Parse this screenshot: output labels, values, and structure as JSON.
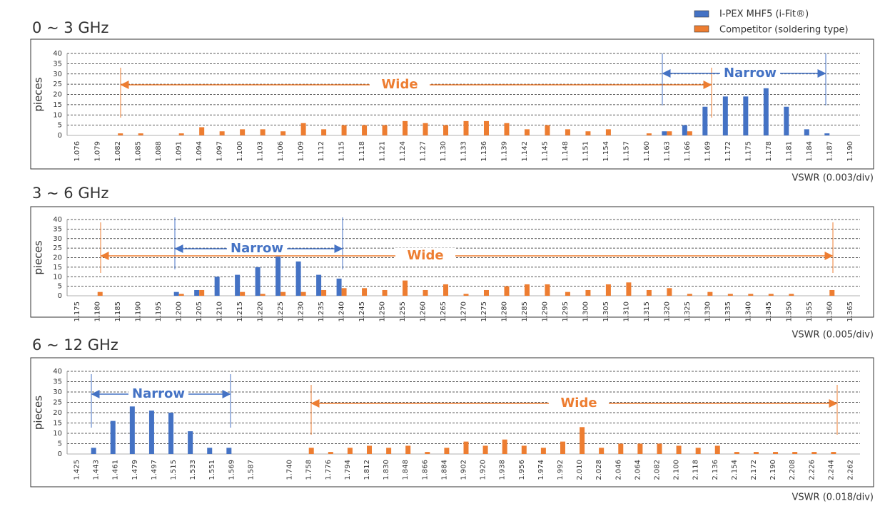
{
  "chart_data": [
    {
      "type": "bar",
      "title": "0 ~ 3 GHz",
      "ylabel": "pieces",
      "xlabel": "VSWR (0.003/div)",
      "categories": [
        "1.076",
        "1.079",
        "1.082",
        "1.085",
        "1.088",
        "1.091",
        "1.094",
        "1.097",
        "1.100",
        "1.103",
        "1.106",
        "1.109",
        "1.112",
        "1.115",
        "1.118",
        "1.121",
        "1.124",
        "1.127",
        "1.130",
        "1.133",
        "1.136",
        "1.139",
        "1.142",
        "1.145",
        "1.148",
        "1.151",
        "1.154",
        "1.157",
        "1.160",
        "1.163",
        "1.166",
        "1.169",
        "1.172",
        "1.175",
        "1.178",
        "1.181",
        "1.184",
        "1.187",
        "1.190"
      ],
      "series": [
        {
          "name": "I-PEX MHF5 (i-Fit®)",
          "color": "#4472c4",
          "values": [
            0,
            0,
            0,
            0,
            0,
            0,
            0,
            0,
            0,
            0,
            0,
            0,
            0,
            0,
            0,
            0,
            0,
            0,
            0,
            0,
            0,
            0,
            0,
            0,
            0,
            0,
            0,
            0,
            0,
            2,
            5,
            14,
            19,
            19,
            23,
            14,
            3,
            1,
            0
          ]
        },
        {
          "name": "Competitor  (soldering type)",
          "color": "#ed7d31",
          "values": [
            0,
            0,
            1,
            1,
            0,
            1,
            4,
            2,
            3,
            3,
            2,
            6,
            3,
            5,
            5,
            5,
            7,
            6,
            5,
            7,
            7,
            6,
            3,
            5,
            3,
            2,
            3,
            0,
            1,
            2,
            2,
            0,
            0,
            0,
            0,
            0,
            0,
            0,
            0
          ]
        }
      ],
      "annotations": [
        "Wide",
        "Narrow"
      ],
      "ylim": [
        0,
        40
      ],
      "yticks": [
        0,
        5,
        10,
        15,
        20,
        25,
        30,
        35,
        40
      ],
      "grid": true
    },
    {
      "type": "bar",
      "title": "3 ~ 6 GHz",
      "ylabel": "pieces",
      "xlabel": "VSWR (0.005/div)",
      "categories": [
        "1.175",
        "1.180",
        "1.185",
        "1.190",
        "1.195",
        "1.200",
        "1.205",
        "1.210",
        "1.215",
        "1.220",
        "1.225",
        "1.230",
        "1.235",
        "1.240",
        "1.245",
        "1.250",
        "1.255",
        "1.260",
        "1.265",
        "1.270",
        "1.275",
        "1.280",
        "1.285",
        "1.290",
        "1.295",
        "1.300",
        "1.305",
        "1.310",
        "1.315",
        "1.320",
        "1.325",
        "1.330",
        "1.335",
        "1.340",
        "1.345",
        "1.350",
        "1.355",
        "1.360",
        "1.365"
      ],
      "series": [
        {
          "color": "#4472c4",
          "values": [
            0,
            0,
            0,
            0,
            0,
            2,
            3,
            10,
            11,
            15,
            21,
            18,
            11,
            9,
            0,
            0,
            0,
            0,
            0,
            0,
            0,
            0,
            0,
            0,
            0,
            0,
            0,
            0,
            0,
            0,
            0,
            0,
            0,
            0,
            0,
            0,
            0,
            0,
            0
          ]
        },
        {
          "color": "#ed7d31",
          "values": [
            0,
            2,
            0,
            0,
            0,
            1,
            3,
            0,
            2,
            1,
            2,
            2,
            3,
            4,
            4,
            3,
            8,
            3,
            6,
            1,
            3,
            5,
            6,
            6,
            2,
            3,
            6,
            7,
            3,
            4,
            1,
            2,
            1,
            1,
            1,
            1,
            0,
            3,
            0
          ]
        }
      ],
      "annotations": [
        "Narrow",
        "Wide"
      ],
      "ylim": [
        0,
        40
      ],
      "yticks": [
        0,
        5,
        10,
        15,
        20,
        25,
        30,
        35,
        40
      ],
      "grid": true
    },
    {
      "type": "bar",
      "title": "6 ~ 12 GHz",
      "ylabel": "pieces",
      "xlabel": "VSWR (0.018/div)",
      "categories": [
        "1.425",
        "1.443",
        "1.461",
        "1.479",
        "1.497",
        "1.515",
        "1.533",
        "1.551",
        "1.569",
        "1.587",
        null,
        "1.740",
        "1.758",
        "1.776",
        "1.794",
        "1.812",
        "1.830",
        "1.848",
        "1.866",
        "1.884",
        "1.902",
        "1.920",
        "1.938",
        "1.956",
        "1.974",
        "1.992",
        "2.010",
        "2.028",
        "2.046",
        "2.064",
        "2.082",
        "2.100",
        "2.118",
        "2.136",
        "2.154",
        "2.172",
        "2.190",
        "2.208",
        "2.226",
        "2.244",
        "2.262"
      ],
      "series": [
        {
          "color": "#4472c4",
          "values": [
            0,
            3,
            16,
            23,
            21,
            20,
            11,
            3,
            3,
            0,
            null,
            0,
            0,
            0,
            0,
            0,
            0,
            0,
            0,
            0,
            0,
            0,
            0,
            0,
            0,
            0,
            0,
            0,
            0,
            0,
            0,
            0,
            0,
            0,
            0,
            0,
            0,
            0,
            0,
            0,
            0
          ]
        },
        {
          "color": "#ed7d31",
          "values": [
            0,
            0,
            0,
            0,
            0,
            0,
            0,
            0,
            0,
            0,
            null,
            0,
            3,
            1,
            3,
            4,
            3,
            4,
            1,
            3,
            6,
            4,
            7,
            4,
            3,
            6,
            13,
            3,
            5,
            5,
            5,
            4,
            3,
            4,
            1,
            1,
            1,
            1,
            1,
            1,
            0
          ]
        }
      ],
      "annotations": [
        "Narrow",
        "Wide"
      ],
      "ylim": [
        0,
        40
      ],
      "yticks": [
        0,
        5,
        10,
        15,
        20,
        25,
        30,
        35,
        40
      ],
      "grid": true
    }
  ]
}
